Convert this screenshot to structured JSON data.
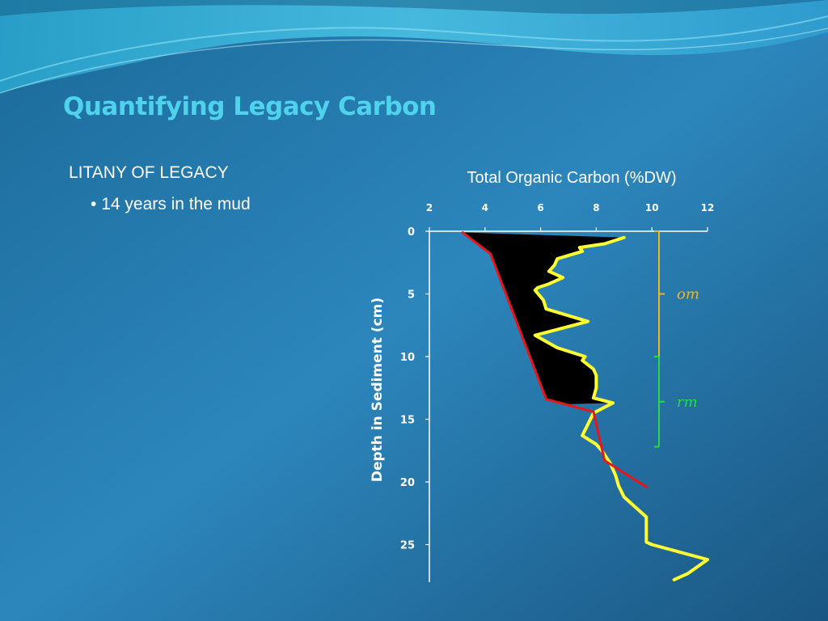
{
  "slide": {
    "title": "Quantifying Legacy Carbon",
    "heading": "LITANY OF LEGACY",
    "bullets": [
      {
        "marker": "•",
        "text": "14 years in the mud"
      }
    ],
    "colors": {
      "title": "#4fd2ec",
      "text": "#ffffff",
      "background": "#2a80b2"
    }
  },
  "chart_data": {
    "type": "line",
    "title": "Total Organic  Carbon (%DW)",
    "xlabel": "",
    "ylabel": "Depth in Sediment (cm)",
    "x_axis_position": "top",
    "xlim": [
      2,
      12
    ],
    "ylim": [
      0,
      28
    ],
    "y_inverted": true,
    "xticks": [
      2,
      4,
      6,
      8,
      10,
      12
    ],
    "yticks": [
      0,
      5,
      10,
      15,
      20,
      25
    ],
    "grid": false,
    "series": [
      {
        "color": "#ffff33",
        "x": [
          9.0,
          8.3,
          7.4,
          7.5,
          6.6,
          6.5,
          6.3,
          6.8,
          6.3,
          5.9,
          5.8,
          6.1,
          6.2,
          7.7,
          5.8,
          6.6,
          7.6,
          7.5,
          7.9,
          8.0,
          8.0,
          7.9,
          8.6,
          7.9,
          7.5,
          8.0,
          8.2,
          8.5,
          8.7,
          8.8,
          9.0,
          9.8,
          9.8,
          9.8,
          10.0,
          12.0,
          11.3,
          10.8
        ],
        "y": [
          0.5,
          1.0,
          1.3,
          1.6,
          2.2,
          2.7,
          3.2,
          3.7,
          4.2,
          4.5,
          4.7,
          5.5,
          6.2,
          7.2,
          8.3,
          9.3,
          10.0,
          10.3,
          11.0,
          11.5,
          12.5,
          13.3,
          13.7,
          14.5,
          16.3,
          17.0,
          17.5,
          18.5,
          19.5,
          20.3,
          21.2,
          22.8,
          23.8,
          24.8,
          25.0,
          26.2,
          27.3,
          27.8
        ]
      },
      {
        "color": "#e8151b",
        "x": [
          3.2,
          4.2,
          6.2,
          7.9,
          8.3,
          9.8
        ],
        "y": [
          0.1,
          1.8,
          13.4,
          14.4,
          18.3,
          20.4
        ]
      }
    ],
    "fill_between": {
      "color": "#000000",
      "depth_range": [
        0,
        13.8
      ],
      "description_text": ""
    },
    "annotations": [
      {
        "label": "om",
        "color": "#f0b429",
        "y_range": [
          0,
          10
        ]
      },
      {
        "label": "rm",
        "color": "#22dd44",
        "y_range": [
          10,
          17.2
        ]
      }
    ]
  }
}
